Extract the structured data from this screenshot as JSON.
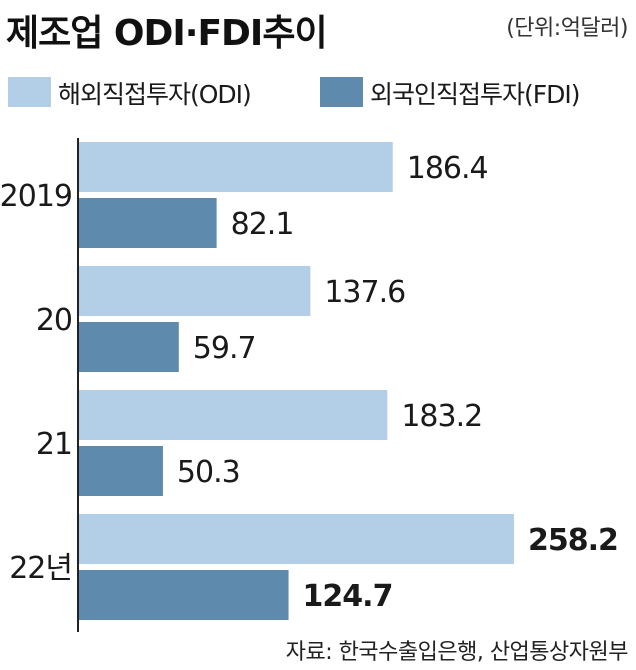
{
  "title": "제조업 ODI·FDI추이",
  "unit": "(단위:억달러)",
  "source": "자료: 한국수출입은행, 산업통상자원부",
  "colors": {
    "odi": "#b3cfe7",
    "fdi": "#5e8aae",
    "axis": "#222222"
  },
  "chart_data": {
    "type": "bar",
    "orientation": "horizontal",
    "categories": [
      "2019",
      "20",
      "21",
      "22년"
    ],
    "series": [
      {
        "name": "해외직접투자(ODI)",
        "values": [
          186.4,
          137.6,
          183.2,
          258.2
        ],
        "labels": [
          "186.4",
          "137.6",
          "183.2",
          "258.2"
        ]
      },
      {
        "name": "외국인직접투자(FDI)",
        "values": [
          82.1,
          59.7,
          50.3,
          124.7
        ],
        "labels": [
          "82.1",
          "59.7",
          "50.3",
          "124.7"
        ]
      }
    ],
    "bold_category": "22년",
    "legend_position": "top",
    "grid": false
  }
}
